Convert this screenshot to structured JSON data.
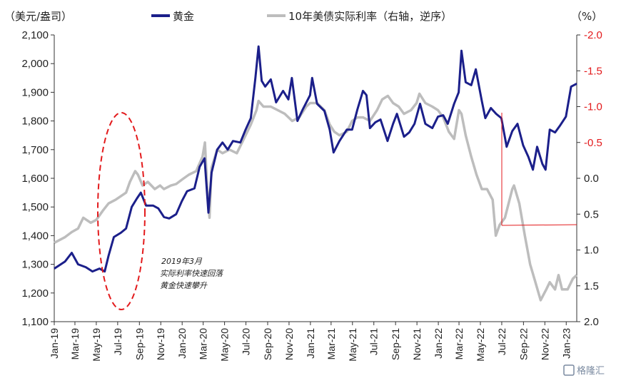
{
  "chart_data": {
    "type": "line",
    "left_unit": "（美元/盎司）",
    "right_unit": "（%）",
    "series": [
      {
        "name": "黄金",
        "axis": "left",
        "color": "#1b1f8a",
        "points": [
          [
            "2019-01-01",
            1285
          ],
          [
            "2019-02-01",
            1310
          ],
          [
            "2019-02-20",
            1340
          ],
          [
            "2019-03-10",
            1300
          ],
          [
            "2019-04-01",
            1290
          ],
          [
            "2019-04-20",
            1275
          ],
          [
            "2019-05-10",
            1285
          ],
          [
            "2019-05-25",
            1275
          ],
          [
            "2019-06-05",
            1330
          ],
          [
            "2019-06-20",
            1395
          ],
          [
            "2019-07-10",
            1410
          ],
          [
            "2019-07-25",
            1425
          ],
          [
            "2019-08-10",
            1500
          ],
          [
            "2019-08-25",
            1530
          ],
          [
            "2019-09-05",
            1550
          ],
          [
            "2019-09-20",
            1505
          ],
          [
            "2019-10-10",
            1505
          ],
          [
            "2019-10-25",
            1495
          ],
          [
            "2019-11-10",
            1465
          ],
          [
            "2019-11-25",
            1460
          ],
          [
            "2019-12-15",
            1475
          ],
          [
            "2019-12-31",
            1520
          ],
          [
            "2020-01-15",
            1555
          ],
          [
            "2020-02-05",
            1565
          ],
          [
            "2020-02-20",
            1640
          ],
          [
            "2020-03-05",
            1670
          ],
          [
            "2020-03-16",
            1480
          ],
          [
            "2020-03-25",
            1620
          ],
          [
            "2020-04-10",
            1700
          ],
          [
            "2020-04-25",
            1725
          ],
          [
            "2020-05-10",
            1700
          ],
          [
            "2020-05-25",
            1730
          ],
          [
            "2020-06-15",
            1725
          ],
          [
            "2020-06-30",
            1770
          ],
          [
            "2020-07-15",
            1810
          ],
          [
            "2020-07-28",
            1950
          ],
          [
            "2020-08-06",
            2060
          ],
          [
            "2020-08-15",
            1940
          ],
          [
            "2020-08-25",
            1920
          ],
          [
            "2020-09-10",
            1945
          ],
          [
            "2020-09-25",
            1865
          ],
          [
            "2020-10-15",
            1905
          ],
          [
            "2020-10-30",
            1875
          ],
          [
            "2020-11-09",
            1950
          ],
          [
            "2020-11-25",
            1800
          ],
          [
            "2020-12-10",
            1840
          ],
          [
            "2020-12-31",
            1890
          ],
          [
            "2021-01-06",
            1950
          ],
          [
            "2021-01-20",
            1860
          ],
          [
            "2021-02-10",
            1835
          ],
          [
            "2021-02-25",
            1770
          ],
          [
            "2021-03-08",
            1690
          ],
          [
            "2021-03-25",
            1730
          ],
          [
            "2021-04-15",
            1770
          ],
          [
            "2021-04-30",
            1770
          ],
          [
            "2021-05-15",
            1840
          ],
          [
            "2021-05-31",
            1905
          ],
          [
            "2021-06-10",
            1890
          ],
          [
            "2021-06-20",
            1775
          ],
          [
            "2021-07-05",
            1795
          ],
          [
            "2021-07-20",
            1805
          ],
          [
            "2021-08-09",
            1730
          ],
          [
            "2021-08-25",
            1790
          ],
          [
            "2021-09-05",
            1825
          ],
          [
            "2021-09-25",
            1745
          ],
          [
            "2021-10-10",
            1760
          ],
          [
            "2021-10-25",
            1790
          ],
          [
            "2021-11-10",
            1860
          ],
          [
            "2021-11-25",
            1790
          ],
          [
            "2021-12-15",
            1775
          ],
          [
            "2021-12-31",
            1815
          ],
          [
            "2022-01-15",
            1820
          ],
          [
            "2022-01-28",
            1790
          ],
          [
            "2022-02-15",
            1860
          ],
          [
            "2022-02-28",
            1900
          ],
          [
            "2022-03-08",
            2045
          ],
          [
            "2022-03-20",
            1935
          ],
          [
            "2022-04-05",
            1925
          ],
          [
            "2022-04-18",
            1980
          ],
          [
            "2022-05-05",
            1870
          ],
          [
            "2022-05-15",
            1810
          ],
          [
            "2022-05-31",
            1845
          ],
          [
            "2022-06-15",
            1825
          ],
          [
            "2022-06-30",
            1810
          ],
          [
            "2022-07-15",
            1710
          ],
          [
            "2022-07-31",
            1765
          ],
          [
            "2022-08-15",
            1790
          ],
          [
            "2022-08-31",
            1715
          ],
          [
            "2022-09-15",
            1675
          ],
          [
            "2022-09-28",
            1630
          ],
          [
            "2022-10-10",
            1710
          ],
          [
            "2022-10-25",
            1650
          ],
          [
            "2022-11-03",
            1630
          ],
          [
            "2022-11-15",
            1770
          ],
          [
            "2022-11-30",
            1760
          ],
          [
            "2022-12-15",
            1785
          ],
          [
            "2022-12-31",
            1815
          ],
          [
            "2023-01-15",
            1920
          ],
          [
            "2023-01-31",
            1930
          ]
        ]
      },
      {
        "name": "10年美债实际利率（右轴，逆序）",
        "axis": "right",
        "color": "#bdbdbd",
        "points": [
          [
            "2019-01-01",
            0.9
          ],
          [
            "2019-02-01",
            0.82
          ],
          [
            "2019-02-20",
            0.75
          ],
          [
            "2019-03-10",
            0.7
          ],
          [
            "2019-03-25",
            0.55
          ],
          [
            "2019-04-15",
            0.62
          ],
          [
            "2019-05-01",
            0.58
          ],
          [
            "2019-05-20",
            0.45
          ],
          [
            "2019-06-05",
            0.35
          ],
          [
            "2019-06-25",
            0.3
          ],
          [
            "2019-07-10",
            0.25
          ],
          [
            "2019-07-25",
            0.2
          ],
          [
            "2019-08-05",
            0.05
          ],
          [
            "2019-08-20",
            -0.1
          ],
          [
            "2019-08-28",
            -0.05
          ],
          [
            "2019-09-10",
            0.1
          ],
          [
            "2019-09-25",
            0.05
          ],
          [
            "2019-10-15",
            0.15
          ],
          [
            "2019-10-30",
            0.1
          ],
          [
            "2019-11-10",
            0.15
          ],
          [
            "2019-11-30",
            0.1
          ],
          [
            "2019-12-15",
            0.08
          ],
          [
            "2019-12-31",
            0.02
          ],
          [
            "2020-01-20",
            -0.05
          ],
          [
            "2020-02-10",
            -0.1
          ],
          [
            "2020-02-28",
            -0.3
          ],
          [
            "2020-03-06",
            -0.5
          ],
          [
            "2020-03-12",
            0.1
          ],
          [
            "2020-03-19",
            0.55
          ],
          [
            "2020-03-25",
            -0.15
          ],
          [
            "2020-04-10",
            -0.4
          ],
          [
            "2020-04-25",
            -0.35
          ],
          [
            "2020-05-15",
            -0.4
          ],
          [
            "2020-06-05",
            -0.35
          ],
          [
            "2020-06-25",
            -0.55
          ],
          [
            "2020-07-15",
            -0.75
          ],
          [
            "2020-07-31",
            -0.95
          ],
          [
            "2020-08-06",
            -1.08
          ],
          [
            "2020-08-20",
            -1.0
          ],
          [
            "2020-09-10",
            -1.0
          ],
          [
            "2020-09-30",
            -0.95
          ],
          [
            "2020-10-20",
            -0.9
          ],
          [
            "2020-11-10",
            -0.8
          ],
          [
            "2020-11-30",
            -0.85
          ],
          [
            "2020-12-20",
            -1.0
          ],
          [
            "2020-12-31",
            -1.05
          ],
          [
            "2021-01-20",
            -1.05
          ],
          [
            "2021-02-10",
            -0.95
          ],
          [
            "2021-02-25",
            -0.75
          ],
          [
            "2021-03-10",
            -0.65
          ],
          [
            "2021-03-25",
            -0.6
          ],
          [
            "2021-04-15",
            -0.65
          ],
          [
            "2021-04-30",
            -0.8
          ],
          [
            "2021-05-15",
            -0.85
          ],
          [
            "2021-05-31",
            -0.85
          ],
          [
            "2021-06-20",
            -0.8
          ],
          [
            "2021-07-10",
            -0.95
          ],
          [
            "2021-07-25",
            -1.1
          ],
          [
            "2021-08-10",
            -1.15
          ],
          [
            "2021-08-25",
            -1.05
          ],
          [
            "2021-09-10",
            -1.0
          ],
          [
            "2021-09-25",
            -0.9
          ],
          [
            "2021-10-15",
            -0.95
          ],
          [
            "2021-10-31",
            -1.05
          ],
          [
            "2021-11-08",
            -1.18
          ],
          [
            "2021-11-25",
            -1.05
          ],
          [
            "2021-12-15",
            -1.0
          ],
          [
            "2021-12-31",
            -0.95
          ],
          [
            "2022-01-15",
            -0.85
          ],
          [
            "2022-01-31",
            -0.65
          ],
          [
            "2022-02-15",
            -0.55
          ],
          [
            "2022-03-01",
            -0.95
          ],
          [
            "2022-03-08",
            -0.9
          ],
          [
            "2022-03-20",
            -0.6
          ],
          [
            "2022-04-05",
            -0.3
          ],
          [
            "2022-04-20",
            -0.05
          ],
          [
            "2022-05-05",
            0.15
          ],
          [
            "2022-05-20",
            0.15
          ],
          [
            "2022-06-05",
            0.3
          ],
          [
            "2022-06-14",
            0.8
          ],
          [
            "2022-06-25",
            0.65
          ],
          [
            "2022-07-10",
            0.55
          ],
          [
            "2022-07-31",
            0.15
          ],
          [
            "2022-08-05",
            0.1
          ],
          [
            "2022-08-20",
            0.35
          ],
          [
            "2022-09-05",
            0.8
          ],
          [
            "2022-09-20",
            1.2
          ],
          [
            "2022-10-05",
            1.45
          ],
          [
            "2022-10-20",
            1.7
          ],
          [
            "2022-11-05",
            1.55
          ],
          [
            "2022-11-15",
            1.45
          ],
          [
            "2022-11-30",
            1.55
          ],
          [
            "2022-12-10",
            1.35
          ],
          [
            "2022-12-20",
            1.55
          ],
          [
            "2023-01-05",
            1.55
          ],
          [
            "2023-01-20",
            1.4
          ],
          [
            "2023-01-31",
            1.35
          ]
        ]
      }
    ],
    "x_tick_labels": [
      "Jan-19",
      "Mar-19",
      "May-19",
      "Jul-19",
      "Sep-19",
      "Nov-19",
      "Jan-20",
      "Mar-20",
      "May-20",
      "Jul-20",
      "Sep-20",
      "Nov-20",
      "Jan-21",
      "Mar-21",
      "May-21",
      "Jul-21",
      "Sep-21",
      "Nov-21",
      "Jan-22",
      "Mar-22",
      "May-22",
      "Jul-22",
      "Sep-22",
      "Nov-22",
      "Jan-23"
    ],
    "x_ticks": [
      "2019-01-01",
      "2019-03-01",
      "2019-05-01",
      "2019-07-01",
      "2019-09-01",
      "2019-11-01",
      "2020-01-01",
      "2020-03-01",
      "2020-05-01",
      "2020-07-01",
      "2020-09-01",
      "2020-11-01",
      "2021-01-01",
      "2021-03-01",
      "2021-05-01",
      "2021-07-01",
      "2021-09-01",
      "2021-11-01",
      "2022-01-01",
      "2022-03-01",
      "2022-05-01",
      "2022-07-01",
      "2022-09-01",
      "2022-11-01",
      "2023-01-01"
    ],
    "xlim": [
      "2019-01-01",
      "2023-01-31"
    ],
    "left_axis": {
      "ylim": [
        1100,
        2100
      ],
      "ticks": [
        1100,
        1200,
        1300,
        1400,
        1500,
        1600,
        1700,
        1800,
        1900,
        2000,
        2100
      ],
      "tick_labels": [
        "1,100",
        "1,200",
        "1,300",
        "1,400",
        "1,500",
        "1,600",
        "1,700",
        "1,800",
        "1,900",
        "2,000",
        "2,100"
      ]
    },
    "right_axis": {
      "inverted": true,
      "ylim": [
        -2.0,
        2.0
      ],
      "ticks": [
        -2.0,
        -1.5,
        -1.0,
        -0.5,
        0.0,
        0.5,
        1.0,
        1.5,
        2.0
      ],
      "tick_labels": [
        "-2.0",
        "-1.5",
        "-1.0",
        "-0.5",
        "0.0",
        "0.5",
        "1.0",
        "1.5",
        "2.0"
      ],
      "color": "#e31a1c"
    },
    "grid": false,
    "legend_position": "top",
    "annotations": {
      "text_lines": [
        "2019年3月",
        "实际利率快速回落",
        "黄金快速攀升"
      ]
    }
  },
  "watermark": "格隆汇"
}
